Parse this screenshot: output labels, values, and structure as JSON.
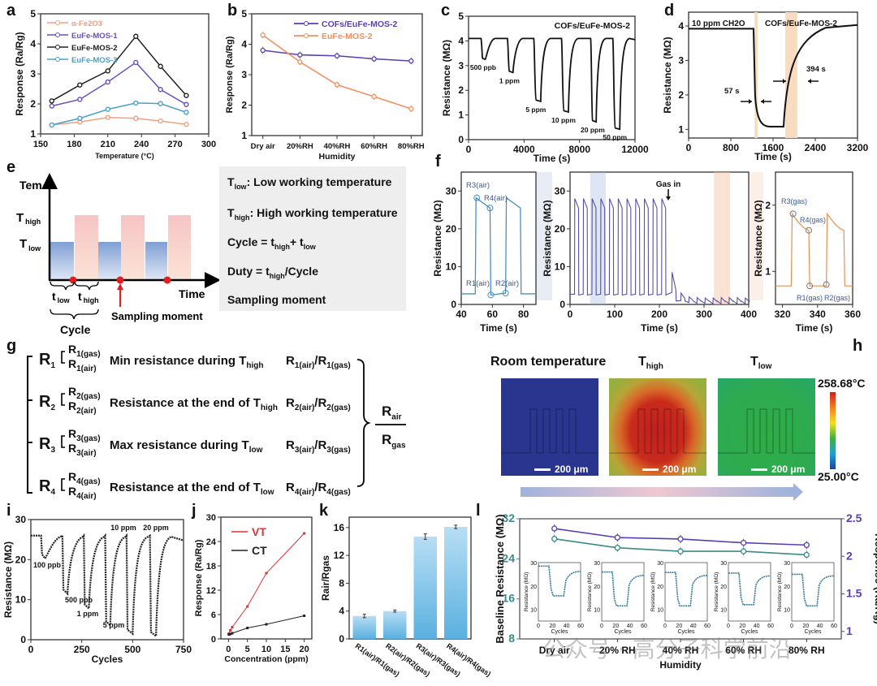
{
  "panel_labels": [
    "a",
    "b",
    "c",
    "d",
    "e",
    "f",
    "g",
    "h",
    "i",
    "j",
    "k",
    "l"
  ],
  "watermark": "公众号 · 高分子科学前沿",
  "chart_data": [
    {
      "id": "a",
      "type": "line",
      "title": "",
      "xlabel": "Temperature (°C)",
      "ylabel": "Response (Ra/Rg)",
      "xlim": [
        150,
        300
      ],
      "ylim": [
        1,
        5
      ],
      "xticks": [
        150,
        180,
        210,
        240,
        270,
        300
      ],
      "yticks": [
        1,
        2,
        3,
        4,
        5
      ],
      "legend": "top-left",
      "x": [
        160,
        185,
        210,
        235,
        257,
        280
      ],
      "series": [
        {
          "name": "α-Fe2O3",
          "color": "#f0a080",
          "values": [
            1.3,
            1.4,
            1.55,
            1.52,
            1.43,
            1.32
          ]
        },
        {
          "name": "EuFe-MOS-1",
          "color": "#6a4fc0",
          "values": [
            1.93,
            2.15,
            2.73,
            3.38,
            2.48,
            1.98
          ]
        },
        {
          "name": "EuFe-MOS-2",
          "color": "#222222",
          "values": [
            2.1,
            2.63,
            3.1,
            4.25,
            3.25,
            2.28
          ]
        },
        {
          "name": "EuFe-MOS-3",
          "color": "#4aa0c8",
          "values": [
            1.3,
            1.52,
            1.82,
            2.03,
            2.01,
            1.72
          ]
        }
      ]
    },
    {
      "id": "b",
      "type": "line",
      "xlabel": "Humidity",
      "ylabel": "Response (Ra/Rg)",
      "ylim": [
        1,
        5
      ],
      "yticks": [
        1,
        2,
        3,
        4,
        5
      ],
      "categories": [
        "Dry air",
        "20%RH",
        "40%RH",
        "60%RH",
        "80%RH"
      ],
      "legend": "top-right",
      "series": [
        {
          "name": "COFs/EuFe-MOS-2",
          "color": "#5a3fb0",
          "values": [
            3.8,
            3.65,
            3.62,
            3.52,
            3.45
          ]
        },
        {
          "name": "EuFe-MOS-2",
          "color": "#f09060",
          "values": [
            4.3,
            3.42,
            2.67,
            2.28,
            1.88
          ]
        }
      ]
    },
    {
      "id": "c",
      "type": "line",
      "title": "COFs/EuFe-MOS-2",
      "xlabel": "Time (s)",
      "ylabel": "Resistance (MΩ)",
      "xlim": [
        0,
        12000
      ],
      "ylim": [
        0,
        5
      ],
      "xticks": [
        0,
        4000,
        8000,
        12000
      ],
      "yticks": [
        0,
        1,
        2,
        3,
        4,
        5
      ],
      "baseline": 4.1,
      "pulses": [
        {
          "label": "500 ppb",
          "start": 900,
          "end": 1200,
          "min": 3.25
        },
        {
          "label": "1 ppm",
          "start": 2800,
          "end": 3200,
          "min": 2.72
        },
        {
          "label": "5 ppm",
          "start": 4700,
          "end": 5200,
          "min": 1.55
        },
        {
          "label": "10 ppm",
          "start": 6700,
          "end": 7200,
          "min": 1.12
        },
        {
          "label": "20 ppm",
          "start": 8800,
          "end": 9200,
          "min": 0.72
        },
        {
          "label": "50 ppm",
          "start": 10400,
          "end": 10900,
          "min": 0.42
        }
      ]
    },
    {
      "id": "d",
      "type": "line",
      "xlabel": "Time (s)",
      "ylabel": "Resistance (MΩ)",
      "xlim": [
        0,
        3200
      ],
      "ylim": [
        0.75,
        4.4
      ],
      "xticks": [
        0,
        800,
        1600,
        2400,
        3200
      ],
      "yticks": [
        1,
        2,
        3,
        4
      ],
      "annotations": [
        "10 ppm CH2O",
        "COFs/EuFe-MOS-2",
        "57 s",
        "394 s"
      ],
      "gas_on": 1250,
      "gas_off": 1800,
      "response_time_s": 57,
      "recovery_time_s": 394,
      "baseline": 3.92,
      "minimum": 1.08,
      "final": 4.03
    },
    {
      "id": "f1",
      "type": "line",
      "xlabel": "Time (s)",
      "ylabel": "Resistance (MΩ)",
      "xlim": [
        40,
        88
      ],
      "ylim": [
        0,
        35
      ],
      "xticks": [
        40,
        60,
        80
      ],
      "yticks": [
        0,
        10,
        20,
        30
      ],
      "annotations": [
        "R3(air)",
        "R4(air)",
        "R1(air)",
        "R2(air)"
      ]
    },
    {
      "id": "f2",
      "type": "line",
      "xlabel": "Time (s)",
      "ylabel": "Resistance (MΩ)",
      "xlim": [
        0,
        400
      ],
      "ylim": [
        0,
        35
      ],
      "xticks": [
        0,
        100,
        200,
        300,
        400
      ],
      "yticks": [
        0,
        10,
        20,
        30
      ],
      "annotations": [
        "Gas in"
      ],
      "gas_in_time": 220
    },
    {
      "id": "f3",
      "type": "line",
      "xlabel": "Time (s)",
      "ylabel": "Resistance (MΩ)",
      "xlim": [
        316,
        360
      ],
      "ylim": [
        0.5,
        2.5
      ],
      "xticks": [
        320,
        340,
        360
      ],
      "yticks": [
        1,
        2
      ],
      "annotations": [
        "R3(gas)",
        "R4(gas)",
        "R1(gas)",
        "R2(gas)"
      ]
    },
    {
      "id": "i",
      "type": "line",
      "xlabel": "Cycles",
      "ylabel": "Resistance (MΩ)",
      "xlim": [
        0,
        750
      ],
      "ylim": [
        0,
        30
      ],
      "xticks": [
        0,
        250,
        500,
        750
      ],
      "yticks": [
        0,
        10,
        20,
        30
      ],
      "baseline": 26,
      "pulses": [
        {
          "label": "100 ppb",
          "start": 50,
          "end": 70,
          "min": 20.3
        },
        {
          "label": "500 ppb",
          "start": 155,
          "end": 180,
          "min": 11.5
        },
        {
          "label": "1 ppm",
          "start": 260,
          "end": 285,
          "min": 7.8
        },
        {
          "label": "5 ppm",
          "start": 365,
          "end": 390,
          "min": 3.6
        },
        {
          "label": "10 ppm",
          "start": 470,
          "end": 500,
          "min": 1.5
        },
        {
          "label": "20 ppm",
          "start": 585,
          "end": 615,
          "min": 0.9
        }
      ]
    },
    {
      "id": "j",
      "type": "line",
      "xlabel": "Concentration (ppm)",
      "ylabel": "Response (Ra/Rg)",
      "xlim": [
        -2,
        22
      ],
      "ylim": [
        0,
        30
      ],
      "xticks": [
        0,
        5,
        10,
        15,
        20
      ],
      "yticks": [
        0,
        6,
        12,
        18,
        24,
        30
      ],
      "legend": "top-left",
      "x": [
        0.1,
        0.5,
        1,
        5,
        10,
        20
      ],
      "series": [
        {
          "name": "VT",
          "color": "#e03030",
          "values": [
            1.3,
            2.1,
            2.9,
            8.0,
            16.2,
            26.0
          ]
        },
        {
          "name": "CT",
          "color": "#222222",
          "values": [
            1.1,
            1.2,
            1.4,
            2.7,
            3.6,
            5.7
          ]
        }
      ]
    },
    {
      "id": "k",
      "type": "bar",
      "ylabel": "Rair/Rgas",
      "ylim": [
        0,
        17.5
      ],
      "yticks": [
        0,
        4,
        8,
        12,
        16
      ],
      "categories": [
        "R1(air)/R1(gas)",
        "R2(air)/R2(gas)",
        "R3(air)/R3(gas)",
        "R4(air)/R4(gas)"
      ],
      "values": [
        3.3,
        4.0,
        14.7,
        16.1
      ],
      "errors": [
        0.25,
        0.15,
        0.4,
        0.25
      ]
    },
    {
      "id": "l",
      "type": "line",
      "xlabel": "Humidity",
      "ylabel": "Baseline Resistance (MΩ)",
      "y2label": "Response (Ra/Rg)",
      "ylim": [
        8,
        32
      ],
      "yticks": [
        8,
        16,
        24,
        32
      ],
      "y2lim": [
        0.9,
        2.5
      ],
      "y2ticks": [
        1.0,
        1.5,
        2.0,
        2.5
      ],
      "categories": [
        "Dry air",
        "20% RH",
        "40% RH",
        "60% RH",
        "80% RH"
      ],
      "series": [
        {
          "name": "Baseline Resistance",
          "axis": "left",
          "color": "#3a8a8a",
          "values": [
            28,
            26.2,
            25.5,
            25.5,
            24.8
          ]
        },
        {
          "name": "Response",
          "axis": "right",
          "color": "#5a3fb0",
          "values": [
            2.37,
            2.25,
            2.23,
            2.18,
            2.15
          ]
        }
      ],
      "insets": {
        "xlabel": "Cycles",
        "ylabel": "Resistance (MΩ)",
        "xticks": [
          0,
          20,
          40,
          60
        ],
        "yticks": [
          10,
          20,
          30
        ],
        "baselines": [
          28.5,
          26,
          25.8,
          25.5,
          25
        ],
        "recovered": [
          26.2,
          24.5,
          24.5,
          24.3,
          24.3
        ],
        "minimums": [
          15.8,
          11.5,
          11.5,
          12,
          11.5
        ]
      }
    }
  ],
  "panel_e": {
    "axis_y_label": "Tem.",
    "axis_x_label": "Time",
    "t_high_label": "T",
    "t_high_sub": "high",
    "t_low_label": "T",
    "t_low_sub": "low",
    "tlow_brace_label": "t",
    "tlow_brace_sub": "low",
    "thigh_brace_label": "t",
    "thigh_brace_sub": "high",
    "cycle_label": "Cycle",
    "sampling_label": "Sampling moment",
    "legend": [
      {
        "pre": "T",
        "sub": "low",
        "post": ":  Low working temperature"
      },
      {
        "pre": "T",
        "sub": "high",
        "post": ": High working temperature"
      },
      {
        "pre": "Cycle = t",
        "sub": "high",
        "post": "+ t",
        "sub2": "low"
      },
      {
        "pre": "Duty = t",
        "sub": "high",
        "post": "/Cycle"
      },
      {
        "pre": "Sampling moment"
      }
    ]
  },
  "panel_g": {
    "rows": [
      {
        "r": "R",
        "rs": "1",
        "gas": "1(gas)",
        "air": "1(air)",
        "desc": "Min resistance during T",
        "desc_sub": "high",
        "ratio_a": "1(air)",
        "ratio_b": "1(gas)"
      },
      {
        "r": "R",
        "rs": "2",
        "gas": "2(gas)",
        "air": "2(air)",
        "desc": "Resistance at the end of T",
        "desc_sub": "high",
        "ratio_a": "2(air)",
        "ratio_b": "2(gas)"
      },
      {
        "r": "R",
        "rs": "3",
        "gas": "3(gas)",
        "air": "3(air)",
        "desc": "Max resistance during T",
        "desc_sub": "low",
        "ratio_a": "3(air)",
        "ratio_b": "3(gas)"
      },
      {
        "r": "R",
        "rs": "4",
        "gas": "4(gas)",
        "air": "4(air)",
        "desc": "Resistance at the end of T",
        "desc_sub": "low",
        "ratio_a": "4(air)",
        "ratio_b": "4(gas)"
      }
    ],
    "fraction_num": "R",
    "fraction_num_sub": "air",
    "fraction_den": "R",
    "fraction_den_sub": "gas"
  },
  "panel_h": {
    "titles": [
      {
        "main": "Room temperature",
        "sub": ""
      },
      {
        "main": "T",
        "sub": "high"
      },
      {
        "main": "T",
        "sub": "low"
      }
    ],
    "scale_bar": "200 μm",
    "colorbar_max": "258.68°C",
    "colorbar_min": "25.00°C"
  }
}
